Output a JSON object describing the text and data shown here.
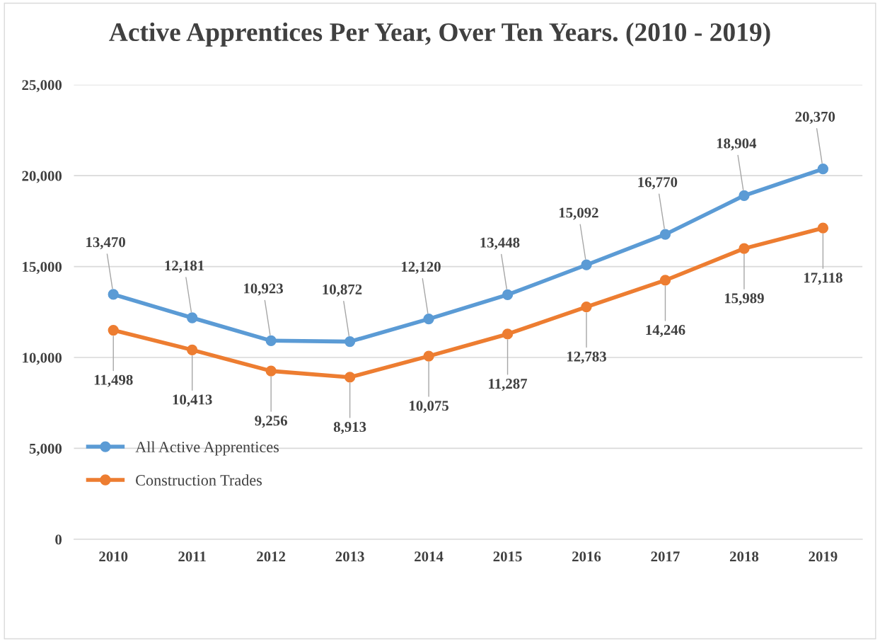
{
  "chart_data": {
    "type": "line",
    "title": "Active Apprentices Per Year, Over Ten Years. (2010 - 2019)",
    "categories": [
      "2010",
      "2011",
      "2012",
      "2013",
      "2014",
      "2015",
      "2016",
      "2017",
      "2018",
      "2019"
    ],
    "series": [
      {
        "name": "All Active Apprentices",
        "color": "#5b9bd5",
        "values": [
          13470,
          12181,
          10923,
          10872,
          12120,
          13448,
          15092,
          16770,
          18904,
          20370
        ],
        "value_labels": [
          "13,470",
          "12,181",
          "10,923",
          "10,872",
          "12,120",
          "13,448",
          "15,092",
          "16,770",
          "18,904",
          "20,370"
        ]
      },
      {
        "name": "Construction Trades",
        "color": "#ed7d31",
        "values": [
          11498,
          10413,
          9256,
          8913,
          10075,
          11287,
          12783,
          14246,
          15989,
          17118
        ],
        "value_labels": [
          "11,498",
          "10,413",
          "9,256",
          "8,913",
          "10,075",
          "11,287",
          "12,783",
          "14,246",
          "15,989",
          "17,118"
        ]
      }
    ],
    "ylim": [
      0,
      25000
    ],
    "yticks": [
      {
        "value": 0,
        "label": "0"
      },
      {
        "value": 5000,
        "label": "5,000"
      },
      {
        "value": 10000,
        "label": "10,000"
      },
      {
        "value": 15000,
        "label": "15,000"
      },
      {
        "value": 20000,
        "label": "20,000"
      },
      {
        "value": 25000,
        "label": "25,000"
      }
    ],
    "grid": "y",
    "legend": "bottom left",
    "marker": "circle",
    "line_style": "solid"
  }
}
